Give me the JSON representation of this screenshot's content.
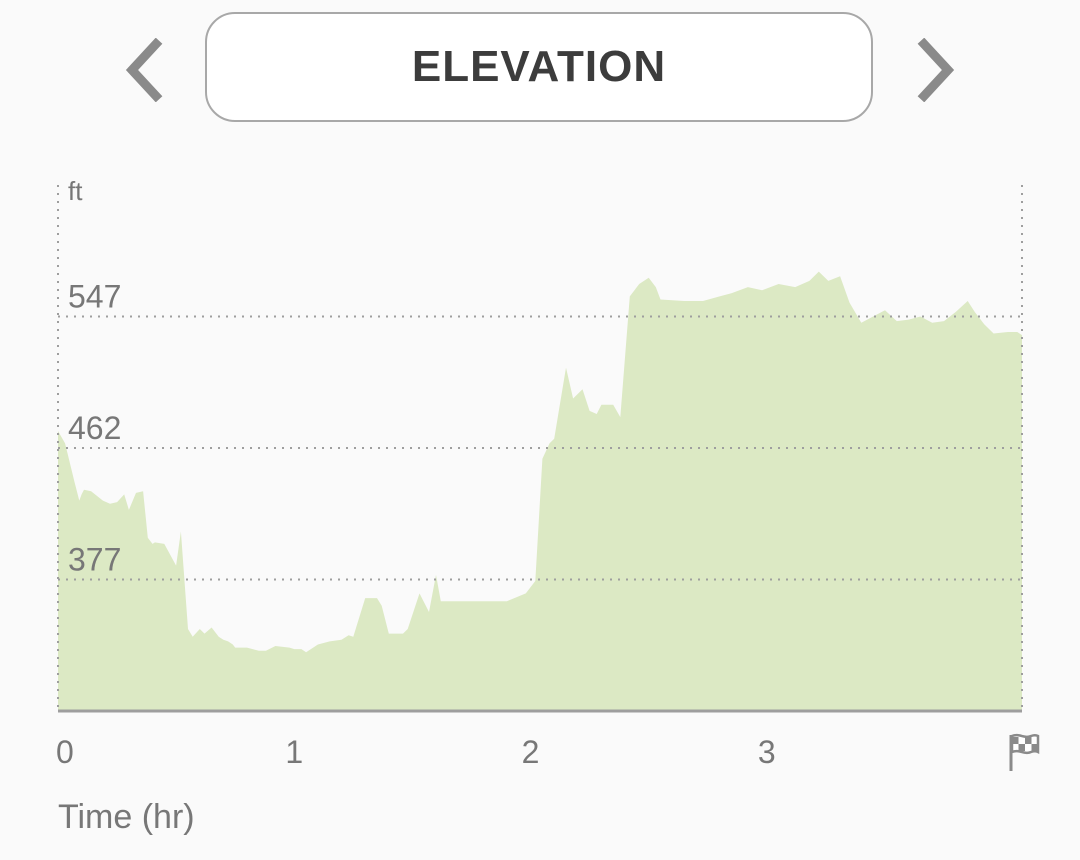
{
  "header": {
    "title": "ELEVATION",
    "prev_icon": "chevron-left-icon",
    "next_icon": "chevron-right-icon"
  },
  "chart_data": {
    "type": "area",
    "title": "",
    "ylabel": "ft",
    "xlabel": "Time (hr)",
    "x_ticks": [
      "0",
      "1",
      "2",
      "3"
    ],
    "x_tick_values": [
      0,
      1,
      2,
      3
    ],
    "end_marker_icon": "checkered-flag-icon",
    "y_ticks": [
      "377",
      "462",
      "547"
    ],
    "y_tick_values": [
      377,
      462,
      547
    ],
    "xlim": [
      0,
      4.08
    ],
    "ylim": [
      292,
      632
    ],
    "grid": true,
    "fill_color": "#dce9c4",
    "axis_color": "#9e9e9e",
    "series": [
      {
        "x": [
          0,
          0.03,
          0.07,
          0.09,
          0.1,
          0.11,
          0.14,
          0.19,
          0.22,
          0.25,
          0.28,
          0.3,
          0.33,
          0.36,
          0.38,
          0.4,
          0.41,
          0.45,
          0.5,
          0.52,
          0.55,
          0.57,
          0.6,
          0.62,
          0.65,
          0.68,
          0.7,
          0.72,
          0.74,
          0.75,
          0.77,
          0.8,
          0.85,
          0.88,
          0.92,
          0.98,
          1.0,
          1.03,
          1.05,
          1.1,
          1.15,
          1.2,
          1.23,
          1.25,
          1.3,
          1.35,
          1.37,
          1.4,
          1.46,
          1.48,
          1.53,
          1.57,
          1.6,
          1.62,
          1.65,
          1.67,
          1.7,
          1.72,
          1.75,
          1.8,
          1.9,
          1.98,
          2.0,
          2.02,
          2.05,
          2.08,
          2.1,
          2.15,
          2.18,
          2.22,
          2.25,
          2.28,
          2.3,
          2.35,
          2.38,
          2.42,
          2.46,
          2.5,
          2.53,
          2.55,
          2.65,
          2.73,
          2.8,
          2.85,
          2.92,
          2.98,
          3.05,
          3.12,
          3.18,
          3.22,
          3.26,
          3.31,
          3.35,
          3.4,
          3.45,
          3.5,
          3.55,
          3.6,
          3.65,
          3.7,
          3.75,
          3.8,
          3.85,
          3.88,
          3.92,
          3.96,
          4.02,
          4.06,
          4.08
        ],
        "y": [
          473,
          465,
          440,
          428,
          432,
          435,
          434,
          428,
          426,
          427,
          432,
          422,
          433,
          434,
          404,
          400,
          401,
          400,
          386,
          408,
          345,
          340,
          345,
          342,
          346,
          340,
          338,
          337,
          335,
          333,
          333,
          333,
          331,
          331,
          334,
          333,
          332,
          332,
          330,
          335,
          337,
          338,
          341,
          340,
          365,
          365,
          360,
          342,
          342,
          345,
          368,
          356,
          380,
          363,
          363,
          363,
          363,
          363,
          363,
          363,
          363,
          368,
          372,
          376,
          455,
          465,
          468,
          514,
          494,
          500,
          486,
          484,
          490,
          490,
          482,
          560,
          568,
          572,
          566,
          558,
          557,
          557,
          560,
          562,
          566,
          564,
          568,
          566,
          570,
          576,
          570,
          573,
          556,
          543,
          547,
          551,
          544,
          545,
          547,
          543,
          544,
          550,
          557,
          550,
          542,
          536,
          537,
          537,
          535
        ]
      }
    ]
  }
}
